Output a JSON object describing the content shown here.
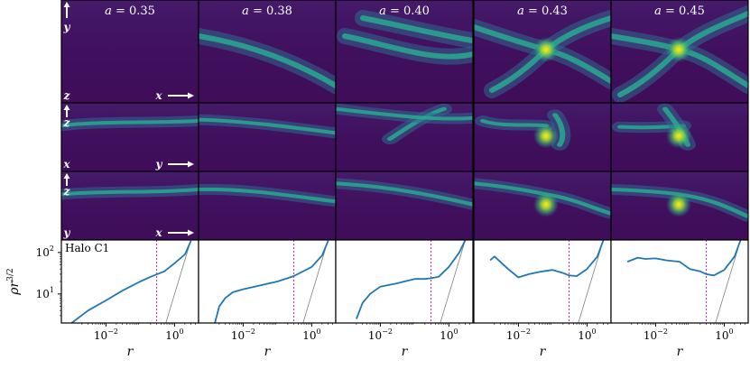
{
  "figure": {
    "columns": [
      {
        "label": "a = 0.35",
        "a": "0.35"
      },
      {
        "label": "a = 0.38",
        "a": "0.38"
      },
      {
        "label": "a = 0.40",
        "a": "0.40"
      },
      {
        "label": "a = 0.43",
        "a": "0.43"
      },
      {
        "label": "a = 0.45",
        "a": "0.45"
      }
    ],
    "rows": [
      {
        "projection": "xy",
        "vertical_axis": "y",
        "horizontal_axis": "x",
        "corner_label": "z"
      },
      {
        "projection": "xz",
        "vertical_axis": "z",
        "horizontal_axis": "y",
        "corner_label": "x"
      },
      {
        "projection": "yz",
        "vertical_axis": "z",
        "horizontal_axis": "x",
        "corner_label": "y"
      }
    ],
    "halo_label": "Halo C1",
    "colormap": "viridis",
    "colors": {
      "background": "#3f0d5a",
      "filament": "#29a98f",
      "bright": "#e5e11a",
      "profile_line": "#1f77b4",
      "reference_line": "#808080",
      "radius_marker": "#c020c0"
    }
  },
  "chart_data": {
    "type": "line",
    "panels": [
      {
        "a": "0.35",
        "x": [
          0.001,
          0.003,
          0.01,
          0.03,
          0.1,
          0.2,
          0.5,
          1,
          2,
          3
        ],
        "y": [
          2,
          4,
          7,
          12,
          20,
          26,
          35,
          55,
          90,
          190
        ]
      },
      {
        "a": "0.38",
        "x": [
          0.0015,
          0.002,
          0.003,
          0.005,
          0.01,
          0.03,
          0.1,
          0.3,
          1,
          2,
          3
        ],
        "y": [
          2,
          5,
          8,
          11,
          13,
          16,
          20,
          27,
          45,
          85,
          190
        ]
      },
      {
        "a": "0.40",
        "x": [
          0.002,
          0.003,
          0.005,
          0.01,
          0.03,
          0.05,
          0.1,
          0.2,
          0.3,
          0.5,
          1,
          2,
          3
        ],
        "y": [
          2.5,
          6,
          10,
          15,
          18,
          20,
          23,
          23,
          24,
          26,
          45,
          100,
          200
        ]
      },
      {
        "a": "0.43",
        "x": [
          0.0015,
          0.002,
          0.005,
          0.01,
          0.02,
          0.05,
          0.1,
          0.2,
          0.3,
          0.5,
          1,
          2,
          3
        ],
        "y": [
          65,
          80,
          40,
          25,
          30,
          35,
          38,
          32,
          28,
          27,
          40,
          80,
          200
        ]
      },
      {
        "a": "0.45",
        "x": [
          0.0015,
          0.003,
          0.005,
          0.01,
          0.02,
          0.05,
          0.1,
          0.2,
          0.3,
          0.5,
          1,
          2,
          3
        ],
        "y": [
          60,
          75,
          70,
          72,
          65,
          60,
          40,
          35,
          30,
          28,
          38,
          80,
          200
        ]
      }
    ],
    "r_vir_marker": 0.3,
    "reference_slope_line": {
      "x": [
        0.5,
        3
      ],
      "y": [
        1.5,
        200
      ]
    },
    "xlabel": "r",
    "ylabel": "ρr^{3/2}",
    "xscale": "log",
    "yscale": "log",
    "xlim": [
      0.0005,
      5
    ],
    "ylim": [
      2,
      200
    ],
    "xticks": [
      "10^{-2}",
      "10^{0}"
    ],
    "yticks": [
      "10^{1}",
      "10^{2}"
    ]
  }
}
